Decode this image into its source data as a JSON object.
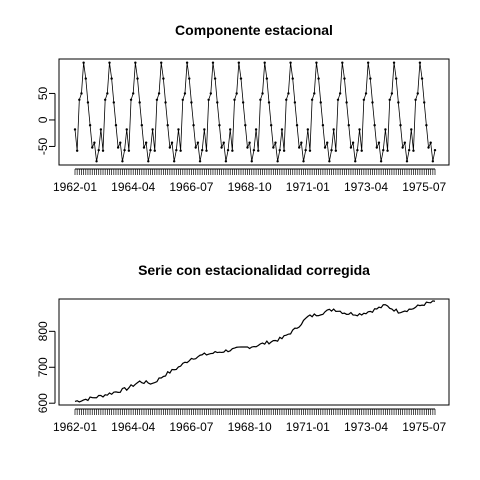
{
  "chart_data": [
    {
      "type": "line",
      "title": "Componente estacional",
      "xlabel": "",
      "ylabel": "",
      "markers": true,
      "start_period": "1962-01",
      "frequency": "monthly",
      "x_tick_labels": [
        "1962-01",
        "1964-04",
        "1966-07",
        "1968-10",
        "1971-01",
        "1973-04",
        "1975-07"
      ],
      "y_ticks": [
        -50,
        0,
        50
      ],
      "ylim": [
        -85,
        115
      ],
      "cycle_values": [
        -18,
        -58,
        38,
        50,
        108,
        78,
        33,
        -10,
        -52,
        -43,
        -78,
        -57
      ],
      "cycles": 14
    },
    {
      "type": "line",
      "title": "Serie con estacionalidad corregida",
      "xlabel": "",
      "ylabel": "",
      "start_period": "1962-01",
      "frequency": "monthly",
      "x_tick_labels": [
        "1962-01",
        "1964-04",
        "1966-07",
        "1968-10",
        "1971-01",
        "1973-04",
        "1975-07"
      ],
      "y_ticks": [
        600,
        700,
        800
      ],
      "ylim": [
        595,
        890
      ],
      "anchor_points": [
        {
          "month_index": 0,
          "value": 605
        },
        {
          "month_index": 6,
          "value": 612
        },
        {
          "month_index": 12,
          "value": 620
        },
        {
          "month_index": 24,
          "value": 640
        },
        {
          "month_index": 30,
          "value": 660
        },
        {
          "month_index": 36,
          "value": 655
        },
        {
          "month_index": 42,
          "value": 680
        },
        {
          "month_index": 48,
          "value": 700
        },
        {
          "month_index": 54,
          "value": 725
        },
        {
          "month_index": 60,
          "value": 735
        },
        {
          "month_index": 72,
          "value": 748
        },
        {
          "month_index": 84,
          "value": 760
        },
        {
          "month_index": 96,
          "value": 780
        },
        {
          "month_index": 102,
          "value": 805
        },
        {
          "month_index": 108,
          "value": 840
        },
        {
          "month_index": 114,
          "value": 850
        },
        {
          "month_index": 120,
          "value": 862
        },
        {
          "month_index": 126,
          "value": 850
        },
        {
          "month_index": 132,
          "value": 848
        },
        {
          "month_index": 138,
          "value": 858
        },
        {
          "month_index": 144,
          "value": 872
        },
        {
          "month_index": 150,
          "value": 855
        },
        {
          "month_index": 156,
          "value": 862
        },
        {
          "month_index": 162,
          "value": 876
        },
        {
          "month_index": 167,
          "value": 882
        }
      ]
    }
  ]
}
